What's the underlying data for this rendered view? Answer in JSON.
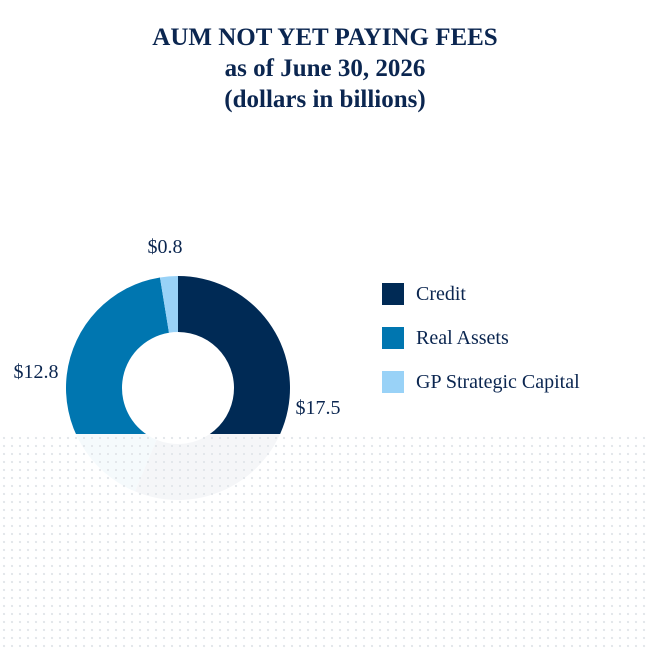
{
  "title": {
    "line1": "AUM NOT YET PAYING FEES",
    "line2": "as of June 30, 2026",
    "line3": "(dollars in billions)"
  },
  "chart_data": {
    "type": "pie",
    "style": "donut",
    "title": "AUM NOT YET PAYING FEES",
    "subtitle": "as of June 30, 2026",
    "unit": "(dollars in billions)",
    "legend_position": "right",
    "slices": [
      {
        "name": "Credit",
        "value": 17.5,
        "label": "$17.5",
        "color": "#002a55"
      },
      {
        "name": "Real Assets",
        "value": 12.8,
        "label": "$12.8",
        "color": "#0076b0"
      },
      {
        "name": "GP Strategic Capital",
        "value": 0.8,
        "label": "$0.8",
        "color": "#99d2f7"
      }
    ]
  }
}
